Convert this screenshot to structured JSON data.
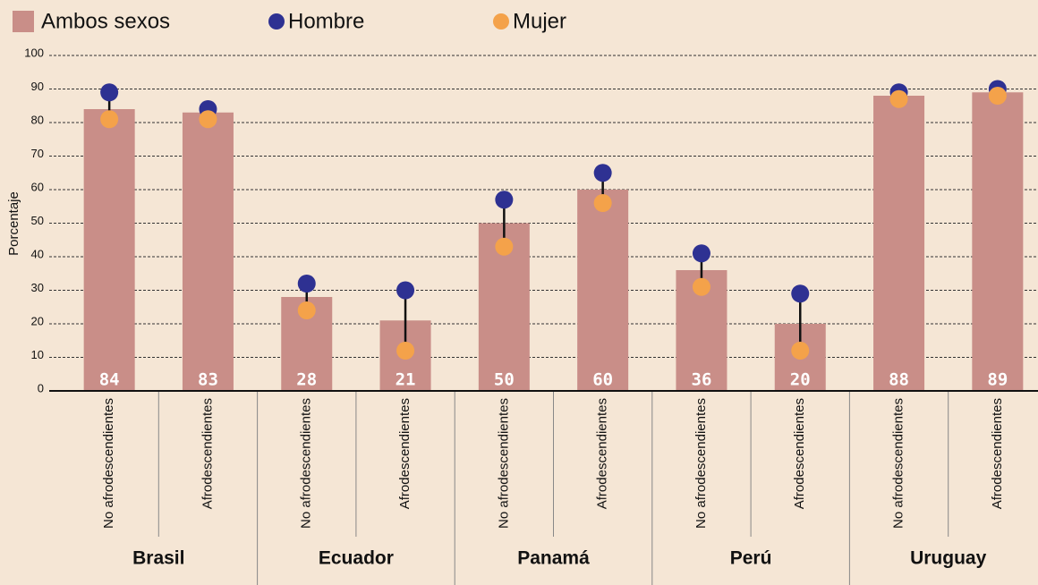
{
  "chart_data": {
    "type": "bar",
    "ylabel": "Porcentaje",
    "categories": [
      "No afrodescendientes",
      "Afrodescendientes",
      "No afrodescendientes",
      "Afrodescendientes",
      "No afrodescendientes",
      "Afrodescendientes",
      "No afrodescendientes",
      "Afrodescendientes",
      "No afrodescendientes",
      "Afrodescendientes"
    ],
    "groups": [
      "Brasil",
      "Ecuador",
      "Panamá",
      "Perú",
      "Uruguay"
    ],
    "series": [
      {
        "name": "Ambos sexos",
        "color": "#c98e88",
        "values": [
          84,
          83,
          28,
          21,
          50,
          60,
          36,
          20,
          88,
          89
        ]
      },
      {
        "name": "Hombre",
        "color": "#2e3192",
        "values": [
          89,
          84,
          32,
          30,
          57,
          65,
          41,
          29,
          89,
          90
        ]
      },
      {
        "name": "Mujer",
        "color": "#f4a24a",
        "values": [
          81,
          81,
          24,
          12,
          43,
          56,
          31,
          12,
          87,
          88
        ]
      }
    ],
    "ylim": [
      0,
      100
    ],
    "yticks": [
      0,
      10,
      20,
      30,
      40,
      50,
      60,
      70,
      80,
      90,
      100
    ],
    "grid": true
  }
}
